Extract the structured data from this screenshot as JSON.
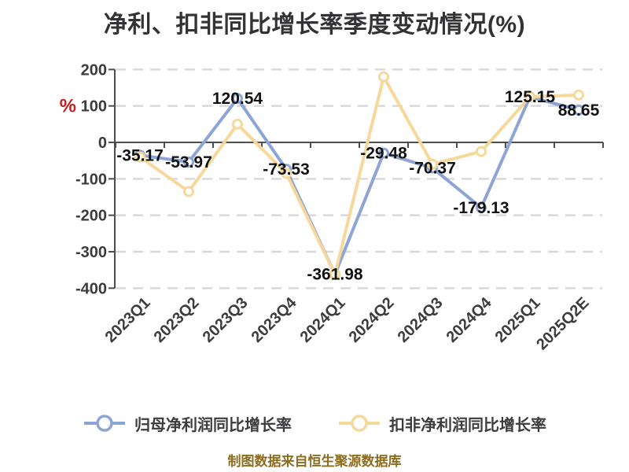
{
  "title": "净利、扣非同比增长率季度变动情况(%)",
  "footer": "制图数据来自恒生聚源数据库",
  "y_axis": {
    "unit": "%",
    "unit_color": "#c41f1f",
    "ticks": [
      200,
      100,
      0,
      -100,
      -200,
      -300,
      -400
    ]
  },
  "chart_data": {
    "type": "line",
    "title": "净利、扣非同比增长率季度变动情况(%)",
    "categories": [
      "2023Q1",
      "2023Q2",
      "2023Q3",
      "2023Q4",
      "2024Q1",
      "2024Q2",
      "2024Q3",
      "2024Q4",
      "2025Q1",
      "2025Q2E"
    ],
    "series": [
      {
        "name": "归母净利润同比增长率",
        "color": "#8ca5d6",
        "values": [
          -35.17,
          -53.97,
          120.54,
          -73.53,
          -361.98,
          -29.48,
          -70.37,
          -179.13,
          125.15,
          88.65
        ],
        "labels_shown": true
      },
      {
        "name": "扣非净利润同比增长率",
        "color": "#f7d89b",
        "values": [
          -40,
          -135,
          50,
          -85,
          -362,
          180,
          -60,
          -25,
          125,
          130
        ],
        "labels_shown": false
      }
    ],
    "ylim": [
      -400,
      200
    ],
    "ylabel": "%",
    "grid": "dashed-horizontal",
    "legend_position": "bottom"
  }
}
